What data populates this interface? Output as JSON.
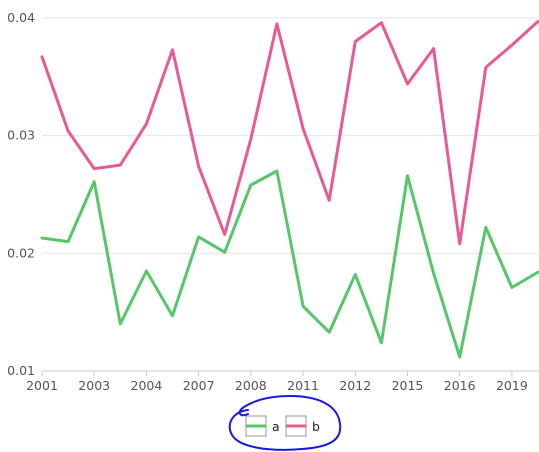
{
  "chart_data": {
    "type": "line",
    "x": [
      2001,
      2002,
      2003,
      2003.5,
      2004,
      2005,
      2007,
      2007.5,
      2008,
      2009,
      2011,
      2011.5,
      2012,
      2013,
      2015,
      2015.5,
      2016,
      2017,
      2019,
      2020
    ],
    "x_tick_labels": [
      "2001",
      "2003",
      "2004",
      "2007",
      "2008",
      "2011",
      "2012",
      "2015",
      "2016",
      "2019"
    ],
    "y_tick_labels": [
      "0.01",
      "0.02",
      "0.03",
      "0.04"
    ],
    "ylim": [
      0.01,
      0.04
    ],
    "series": [
      {
        "name": "a",
        "color": "#55c76a",
        "values": [
          0.0213,
          0.021,
          0.0261,
          0.014,
          0.0185,
          0.0147,
          0.0214,
          0.0201,
          0.0258,
          0.027,
          0.0155,
          0.0133,
          0.0182,
          0.0124,
          0.0266,
          0.0183,
          0.0112,
          0.0222,
          0.0171,
          0.0184
        ]
      },
      {
        "name": "b",
        "color": "#e85a93",
        "values": [
          0.0367,
          0.0304,
          0.0272,
          0.0275,
          0.031,
          0.0373,
          0.0274,
          0.0216,
          0.0297,
          0.0395,
          0.0306,
          0.0245,
          0.038,
          0.0396,
          0.0344,
          0.0374,
          0.0208,
          0.0358,
          0.0377,
          0.0397
        ]
      }
    ],
    "grid": true,
    "legend": "bottom-center"
  }
}
